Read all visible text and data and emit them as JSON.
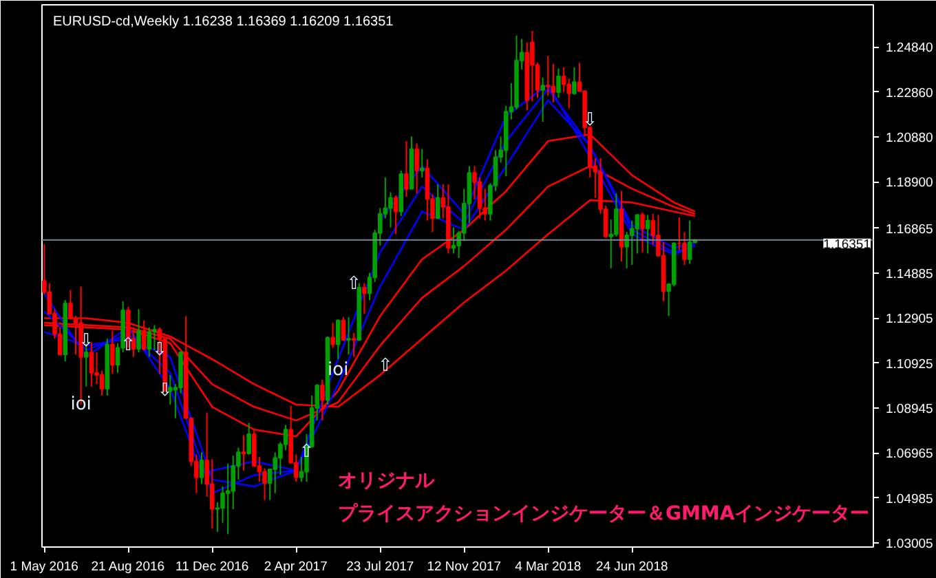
{
  "chart_data": {
    "type": "candlestick",
    "title": "EURUSD-cd,Weekly  1.16238 1.16369 1.16209 1.16351",
    "annotations": [
      "オリジナル",
      "プライスアクションインジケーター＆GMMAインジケーター",
      {
        "text": "⇩",
        "x": "2016-06-26",
        "y": 1.119
      },
      {
        "text": "⇧",
        "x": "2016-08-21",
        "y": 1.117
      },
      {
        "text": "⇩",
        "x": "2016-10-02",
        "y": 1.115
      },
      {
        "text": "⇩",
        "x": "2016-10-09",
        "y": 1.097
      },
      {
        "text": "⇧",
        "x": "2017-04-16",
        "y": 1.07
      },
      {
        "text": "⇧",
        "x": "2017-06-18",
        "y": 1.144
      },
      {
        "text": "⇧",
        "x": "2017-07-30",
        "y": 1.108
      },
      {
        "text": "⇩",
        "x": "2018-04-29",
        "y": 1.216
      },
      {
        "text": "ioi",
        "x": "2016-06-19",
        "y": 1.091
      },
      {
        "text": "ioi",
        "x": "2017-05-28",
        "y": 1.106
      }
    ],
    "xlim": [
      "2016-04-28",
      "2019-05-12"
    ],
    "xticks": [
      {
        "value": "2016-05-01",
        "label": "1 May 2016"
      },
      {
        "value": "2016-08-21",
        "label": "21 Aug 2016"
      },
      {
        "value": "2016-12-11",
        "label": "11 Dec 2016"
      },
      {
        "value": "2017-04-02",
        "label": "2 Apr 2017"
      },
      {
        "value": "2017-07-23",
        "label": "23 Jul 2017"
      },
      {
        "value": "2017-11-12",
        "label": "12 Nov 2017"
      },
      {
        "value": "2018-03-04",
        "label": "4 Mar 2018"
      },
      {
        "value": "2018-06-24",
        "label": "24 Jun 2018"
      }
    ],
    "ylim": [
      1.0283,
      1.267
    ],
    "yticks": [
      1.03005,
      1.04985,
      1.06965,
      1.08945,
      1.10925,
      1.12905,
      1.14885,
      1.16865,
      {
        "value": 1.189,
        "label": "1.18900"
      },
      {
        "value": 1.2088,
        "label": "1.20880"
      },
      {
        "value": 1.2286,
        "label": "1.22860"
      },
      {
        "value": 1.2484,
        "label": "1.24840"
      }
    ],
    "ref_lines": [
      {
        "axis": "y",
        "value": 1.16351,
        "label": "1.16351",
        "color": "#778899"
      }
    ],
    "grid": false,
    "series": [
      {
        "type": "line",
        "color": "#ff0000",
        "x": [
          "2016-05-01",
          "2016-06-26",
          "2016-08-21",
          "2016-10-16",
          "2016-12-11",
          "2017-02-05",
          "2017-04-02",
          "2017-05-28",
          "2017-07-23",
          "2017-09-17",
          "2017-11-12",
          "2018-01-07",
          "2018-03-04",
          "2018-04-29",
          "2018-06-24",
          "2018-08-19",
          "2018-09-16"
        ],
        "values": [
          1.129,
          1.129,
          1.127,
          1.121,
          1.111,
          1.1,
          1.091,
          1.09,
          1.104,
          1.12,
          1.136,
          1.15,
          1.166,
          1.181,
          1.18,
          1.176,
          1.174
        ]
      },
      {
        "type": "line",
        "color": "#ff0000",
        "x": [
          "2016-05-01",
          "2016-08-21",
          "2016-10-16",
          "2016-12-11",
          "2017-02-05",
          "2017-04-02",
          "2017-05-28",
          "2017-07-23",
          "2017-09-17",
          "2017-11-12",
          "2018-01-07",
          "2018-03-04",
          "2018-04-29",
          "2018-06-24",
          "2018-08-19",
          "2018-09-16"
        ],
        "values": [
          1.127,
          1.125,
          1.12,
          1.1,
          1.09,
          1.084,
          1.092,
          1.117,
          1.138,
          1.152,
          1.168,
          1.187,
          1.196,
          1.186,
          1.178,
          1.175
        ]
      },
      {
        "type": "line",
        "color": "#ff0000",
        "x": [
          "2016-05-01",
          "2016-08-21",
          "2016-10-16",
          "2016-12-11",
          "2017-02-05",
          "2017-04-02",
          "2017-05-28",
          "2017-07-23",
          "2017-09-17",
          "2017-11-12",
          "2018-01-07",
          "2018-03-04",
          "2018-04-29",
          "2018-06-24",
          "2018-08-19",
          "2018-09-16"
        ],
        "values": [
          1.126,
          1.124,
          1.118,
          1.09,
          1.08,
          1.077,
          1.097,
          1.13,
          1.155,
          1.168,
          1.185,
          1.207,
          1.21,
          1.192,
          1.18,
          1.176
        ]
      },
      {
        "type": "line",
        "color": "#0000ff",
        "x": [
          "2016-05-01",
          "2016-06-26",
          "2016-08-21",
          "2016-10-16",
          "2016-12-11",
          "2017-02-05",
          "2017-04-02",
          "2017-05-28",
          "2017-07-23",
          "2017-09-17",
          "2017-11-12",
          "2018-01-07",
          "2018-03-04",
          "2018-04-29",
          "2018-06-24",
          "2018-08-19",
          "2018-09-16"
        ],
        "values": [
          1.123,
          1.117,
          1.12,
          1.112,
          1.058,
          1.055,
          1.062,
          1.1,
          1.143,
          1.176,
          1.168,
          1.196,
          1.225,
          1.205,
          1.17,
          1.16,
          1.162
        ]
      },
      {
        "type": "line",
        "color": "#0000ff",
        "x": [
          "2016-05-01",
          "2016-06-26",
          "2016-08-21",
          "2016-10-16",
          "2016-12-11",
          "2017-02-05",
          "2017-04-02",
          "2017-05-28",
          "2017-07-23",
          "2017-09-17",
          "2017-11-12",
          "2018-01-07",
          "2018-03-04",
          "2018-04-29",
          "2018-06-24",
          "2018-08-19",
          "2018-09-16"
        ],
        "values": [
          1.132,
          1.115,
          1.122,
          1.105,
          1.052,
          1.06,
          1.062,
          1.111,
          1.158,
          1.187,
          1.171,
          1.207,
          1.23,
          1.205,
          1.168,
          1.158,
          1.161
        ]
      },
      {
        "type": "line",
        "color": "#0000ff",
        "x": [
          "2016-05-01",
          "2016-06-26",
          "2016-08-21",
          "2016-10-16",
          "2016-11-27",
          "2017-02-05",
          "2017-04-02",
          "2017-05-28",
          "2017-07-23",
          "2017-09-17",
          "2017-11-12",
          "2018-01-07",
          "2018-03-04",
          "2018-04-29",
          "2018-06-24",
          "2018-08-19",
          "2018-09-16"
        ],
        "values": [
          1.14,
          1.112,
          1.125,
          1.098,
          1.061,
          1.066,
          1.062,
          null,
          1.172,
          1.196,
          1.175,
          1.218,
          1.232,
          1.2,
          1.166,
          1.157,
          1.161
        ]
      },
      {
        "color": "#ff0000",
        "x": [
          "2016-05-01",
          "2016-05-08",
          "2016-05-15",
          "2016-05-22",
          "2016-06-05",
          "2016-06-12",
          "2016-06-19",
          "2016-07-03",
          "2016-07-10",
          "2016-07-17",
          "2016-07-31",
          "2016-08-21",
          "2016-08-28",
          "2016-09-11",
          "2016-10-02",
          "2016-10-09",
          "2016-11-06",
          "2016-11-13",
          "2016-11-20",
          "2016-12-04",
          "2016-12-11",
          "2017-01-22",
          "2017-02-05",
          "2017-02-12",
          "2017-02-19",
          "2017-03-26",
          "2017-04-02",
          "2017-05-07",
          "2017-05-21",
          "2017-06-04",
          "2017-06-18",
          "2017-07-02",
          "2017-08-13",
          "2017-08-27",
          "2017-09-10",
          "2017-09-24",
          "2017-10-01",
          "2017-10-15",
          "2017-10-22",
          "2017-11-26",
          "2017-12-03",
          "2017-12-10",
          "2018-02-04",
          "2018-02-11",
          "2018-02-18",
          "2018-03-04",
          "2018-03-11",
          "2018-03-25",
          "2018-04-01",
          "2018-04-15",
          "2018-04-22",
          "2018-04-29",
          "2018-05-06",
          "2018-05-13",
          "2018-05-20",
          "2018-06-10",
          "2018-07-08",
          "2018-07-22",
          "2018-07-29",
          "2018-08-05",
          "2018-08-26",
          "2018-09-02"
        ],
        "ohlc": [
          [
            1.1455,
            1.1616,
            1.1395,
            1.1405
          ],
          [
            1.1405,
            1.1445,
            1.131,
            1.131
          ],
          [
            1.131,
            1.133,
            1.12,
            1.122
          ],
          [
            1.122,
            1.125,
            1.113,
            1.113
          ],
          [
            1.1355,
            1.1415,
            1.129,
            1.129
          ],
          [
            1.129,
            1.13,
            1.113,
            1.127
          ],
          [
            1.127,
            1.143,
            1.091,
            1.112
          ],
          [
            1.114,
            1.1185,
            1.099,
            1.105
          ],
          [
            1.105,
            1.114,
            1.1,
            1.104
          ],
          [
            1.104,
            1.106,
            1.095,
            1.098
          ],
          [
            1.1175,
            1.1235,
            1.1045,
            1.1085
          ],
          [
            1.1325,
            1.134,
            1.116,
            1.12
          ],
          [
            1.12,
            1.125,
            1.112,
            1.1155
          ],
          [
            1.1235,
            1.128,
            1.115,
            1.1155
          ],
          [
            1.124,
            1.125,
            1.1045,
            1.12
          ],
          [
            1.12,
            1.121,
            1.097,
            1.097
          ],
          [
            1.114,
            1.13,
            1.085,
            1.085
          ],
          [
            1.085,
            1.085,
            1.064,
            1.066
          ],
          [
            1.066,
            1.069,
            1.052,
            1.059
          ],
          [
            1.0665,
            1.0875,
            1.0505,
            1.056
          ],
          [
            1.056,
            1.067,
            1.0365,
            1.045
          ],
          [
            1.07,
            1.0775,
            1.062,
            1.0695
          ],
          [
            1.078,
            1.08,
            1.064,
            1.064
          ],
          [
            1.064,
            1.068,
            1.057,
            1.0615
          ],
          [
            1.0615,
            1.063,
            1.049,
            1.0565
          ],
          [
            1.08,
            1.0905,
            1.065,
            1.0655
          ],
          [
            1.0655,
            1.069,
            1.057,
            1.059
          ],
          [
            1.0995,
            1.102,
            1.084,
            1.093
          ],
          [
            1.1205,
            1.127,
            1.116,
            1.1175
          ],
          [
            1.128,
            1.1295,
            1.1195,
            1.1195
          ],
          [
            1.12,
            1.1225,
            1.112,
            1.1195
          ],
          [
            1.1425,
            1.1445,
            1.131,
            1.14
          ],
          [
            1.182,
            1.183,
            1.166,
            1.176
          ],
          [
            1.1925,
            1.207,
            1.1825,
            1.186
          ],
          [
            1.2035,
            1.206,
            1.184,
            1.194
          ],
          [
            1.195,
            1.199,
            1.172,
            1.1815
          ],
          [
            1.1815,
            1.1835,
            1.167,
            1.173
          ],
          [
            1.182,
            1.188,
            1.173,
            1.178
          ],
          [
            1.178,
            1.188,
            1.1575,
            1.16
          ],
          [
            1.193,
            1.196,
            1.1815,
            1.189
          ],
          [
            1.189,
            1.191,
            1.173,
            1.1775
          ],
          [
            1.1775,
            1.186,
            1.172,
            1.175
          ],
          [
            1.246,
            1.2505,
            1.2205,
            1.225
          ],
          [
            1.2505,
            1.2555,
            1.2245,
            1.2405
          ],
          [
            1.2405,
            1.2415,
            1.226,
            1.2295
          ],
          [
            1.2315,
            1.2445,
            1.227,
            1.231
          ],
          [
            1.231,
            1.241,
            1.224,
            1.2285
          ],
          [
            1.2355,
            1.2395,
            1.2285,
            1.232
          ],
          [
            1.232,
            1.2345,
            1.2215,
            1.228
          ],
          [
            1.233,
            1.2415,
            1.229,
            1.229
          ],
          [
            1.229,
            1.2295,
            1.2095,
            1.213
          ],
          [
            1.213,
            1.2135,
            1.191,
            1.196
          ],
          [
            1.196,
            1.1995,
            1.182,
            1.1935
          ],
          [
            1.1935,
            1.1995,
            1.175,
            1.177
          ],
          [
            1.177,
            1.1785,
            1.1645,
            1.165
          ],
          [
            1.177,
            1.185,
            1.154,
            1.1605
          ],
          [
            1.1745,
            1.1755,
            1.158,
            1.1685
          ],
          [
            1.172,
            1.175,
            1.1615,
            1.1655
          ],
          [
            1.1655,
            1.1745,
            1.1565,
            1.1565
          ],
          [
            1.1565,
            1.1625,
            1.1365,
            1.141
          ],
          [
            1.162,
            1.1735,
            1.159,
            1.162
          ],
          [
            1.162,
            1.167,
            1.1525,
            1.155
          ]
        ]
      },
      {
        "color": "#00a000",
        "x": [
          "2016-05-29",
          "2016-06-26",
          "2016-07-24",
          "2016-08-07",
          "2016-08-14",
          "2016-09-04",
          "2016-09-18",
          "2016-09-25",
          "2016-10-16",
          "2016-10-23",
          "2016-10-30",
          "2016-11-27",
          "2016-12-18",
          "2016-12-25",
          "2017-01-01",
          "2017-01-08",
          "2017-01-15",
          "2017-01-29",
          "2017-02-26",
          "2017-03-05",
          "2017-03-12",
          "2017-03-19",
          "2017-04-09",
          "2017-04-16",
          "2017-04-23",
          "2017-04-30",
          "2017-05-14",
          "2017-05-28",
          "2017-06-11",
          "2017-06-25",
          "2017-07-09",
          "2017-07-16",
          "2017-07-23",
          "2017-07-30",
          "2017-08-06",
          "2017-08-20",
          "2017-09-03",
          "2017-09-17",
          "2017-10-08",
          "2017-10-29",
          "2017-11-05",
          "2017-11-12",
          "2017-11-19",
          "2017-12-17",
          "2017-12-24",
          "2017-12-31",
          "2018-01-07",
          "2018-01-14",
          "2018-01-21",
          "2018-01-28",
          "2018-02-25",
          "2018-03-18",
          "2018-04-08",
          "2018-05-27",
          "2018-06-03",
          "2018-06-17",
          "2018-06-24",
          "2018-07-01",
          "2018-07-15",
          "2018-08-12",
          "2018-08-19",
          "2018-09-09",
          "2018-09-16"
        ],
        "ohlc": [
          [
            1.113,
            1.137,
            1.11,
            1.1355
          ],
          [
            1.112,
            1.118,
            1.099,
            1.114
          ],
          [
            1.098,
            1.12,
            1.095,
            1.1175
          ],
          [
            1.1085,
            1.118,
            1.105,
            1.116
          ],
          [
            1.116,
            1.1365,
            1.114,
            1.1325
          ],
          [
            1.1155,
            1.133,
            1.114,
            1.1235
          ],
          [
            1.1155,
            1.125,
            1.112,
            1.123
          ],
          [
            1.123,
            1.126,
            1.115,
            1.124
          ],
          [
            1.097,
            1.104,
            1.091,
            1.0985
          ],
          [
            1.0975,
            1.1,
            1.085,
            1.0985
          ],
          [
            1.0985,
            1.1145,
            1.096,
            1.114
          ],
          [
            1.059,
            1.07,
            1.056,
            1.0665
          ],
          [
            1.045,
            1.048,
            1.035,
            1.0455
          ],
          [
            1.0455,
            1.055,
            1.039,
            1.052
          ],
          [
            1.052,
            1.065,
            1.034,
            1.053
          ],
          [
            1.053,
            1.0685,
            1.045,
            1.064
          ],
          [
            1.064,
            1.072,
            1.058,
            1.07
          ],
          [
            1.0695,
            1.083,
            1.069,
            1.078
          ],
          [
            1.0565,
            1.0625,
            1.049,
            1.0625
          ],
          [
            1.0625,
            1.07,
            1.052,
            1.0675
          ],
          [
            1.0675,
            1.0745,
            1.06,
            1.0735
          ],
          [
            1.0735,
            1.082,
            1.071,
            1.08
          ],
          [
            1.059,
            1.068,
            1.057,
            1.0615
          ],
          [
            1.0615,
            1.078,
            1.057,
            1.0725
          ],
          [
            1.0725,
            1.095,
            1.072,
            1.0895
          ],
          [
            1.0895,
            1.1,
            1.084,
            1.0995
          ],
          [
            1.093,
            1.121,
            1.091,
            1.1205
          ],
          [
            1.1175,
            1.1285,
            1.111,
            1.128
          ],
          [
            1.1195,
            1.1295,
            1.113,
            1.12
          ],
          [
            1.1195,
            1.1445,
            1.119,
            1.1425
          ],
          [
            1.14,
            1.149,
            1.137,
            1.147
          ],
          [
            1.147,
            1.168,
            1.145,
            1.1665
          ],
          [
            1.1665,
            1.1775,
            1.161,
            1.175
          ],
          [
            1.175,
            1.191,
            1.173,
            1.1775
          ],
          [
            1.1775,
            1.1845,
            1.169,
            1.182
          ],
          [
            1.176,
            1.194,
            1.174,
            1.1925
          ],
          [
            1.186,
            1.209,
            1.186,
            1.2035
          ],
          [
            1.194,
            1.2035,
            1.191,
            1.195
          ],
          [
            1.173,
            1.188,
            1.173,
            1.182
          ],
          [
            1.16,
            1.169,
            1.1575,
            1.161
          ],
          [
            1.161,
            1.1675,
            1.1555,
            1.1665
          ],
          [
            1.1665,
            1.186,
            1.163,
            1.1795
          ],
          [
            1.1795,
            1.196,
            1.171,
            1.193
          ],
          [
            1.175,
            1.1885,
            1.172,
            1.1875
          ],
          [
            1.1875,
            1.203,
            1.185,
            1.2
          ],
          [
            1.2,
            1.209,
            1.1975,
            1.203
          ],
          [
            1.203,
            1.2225,
            1.1915,
            1.22
          ],
          [
            1.22,
            1.2325,
            1.2165,
            1.222
          ],
          [
            1.222,
            1.2535,
            1.221,
            1.2425
          ],
          [
            1.2425,
            1.252,
            1.2385,
            1.246
          ],
          [
            1.2295,
            1.235,
            1.2155,
            1.2315
          ],
          [
            1.2285,
            1.239,
            1.226,
            1.2355
          ],
          [
            1.228,
            1.2395,
            1.2275,
            1.233
          ],
          [
            1.165,
            1.1725,
            1.151,
            1.166
          ],
          [
            1.166,
            1.184,
            1.165,
            1.177
          ],
          [
            1.1605,
            1.167,
            1.151,
            1.1655
          ],
          [
            1.1655,
            1.172,
            1.1525,
            1.1685
          ],
          [
            1.1685,
            1.1745,
            1.1575,
            1.1745
          ],
          [
            1.1685,
            1.1745,
            1.1575,
            1.172
          ],
          [
            1.141,
            1.1445,
            1.13,
            1.144
          ],
          [
            1.144,
            1.1625,
            1.143,
            1.162
          ],
          [
            1.155,
            1.172,
            1.153,
            1.1625
          ],
          [
            1.16238,
            1.16369,
            1.16209,
            1.16351
          ]
        ]
      }
    ]
  }
}
